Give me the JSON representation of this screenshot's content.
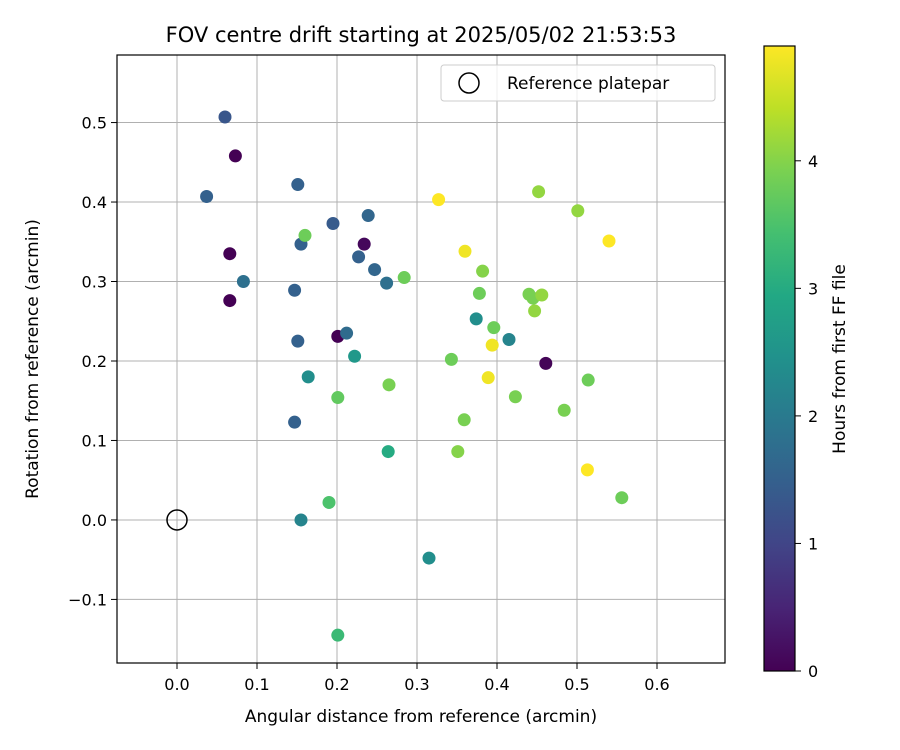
{
  "chart_data": {
    "type": "scatter",
    "title": "FOV centre drift starting at 2025/05/02 21:53:53",
    "xlabel": "Angular distance from reference (arcmin)",
    "ylabel": "Rotation from reference (arcmin)",
    "xlim": [
      -0.075,
      0.685
    ],
    "ylim": [
      -0.18,
      0.585
    ],
    "xticks": [
      0.0,
      0.1,
      0.2,
      0.3,
      0.4,
      0.5,
      0.6
    ],
    "xtick_labels": [
      "0.0",
      "0.1",
      "0.2",
      "0.3",
      "0.4",
      "0.5",
      "0.6"
    ],
    "yticks": [
      -0.1,
      0.0,
      0.1,
      0.2,
      0.3,
      0.4,
      0.5
    ],
    "ytick_labels": [
      "−0.1",
      "0.0",
      "0.1",
      "0.2",
      "0.3",
      "0.4",
      "0.5"
    ],
    "grid": true,
    "legend": {
      "position": "top-right",
      "entries": [
        {
          "label": "Reference platepar",
          "marker": "open-circle"
        }
      ]
    },
    "reference_point": {
      "x": 0.0,
      "y": 0.0
    },
    "colorbar": {
      "label": "Hours from first FF file",
      "colormap": "viridis",
      "range": [
        0,
        4.9
      ],
      "ticks": [
        0,
        1,
        2,
        3,
        4
      ],
      "tick_labels": [
        "0",
        "1",
        "2",
        "3",
        "4"
      ]
    },
    "points": [
      {
        "x": 0.073,
        "y": 0.458,
        "hours": 0.0
      },
      {
        "x": 0.066,
        "y": 0.335,
        "hours": 0.0
      },
      {
        "x": 0.066,
        "y": 0.276,
        "hours": 0.0
      },
      {
        "x": 0.201,
        "y": 0.231,
        "hours": 0.0
      },
      {
        "x": 0.234,
        "y": 0.347,
        "hours": 0.1
      },
      {
        "x": 0.461,
        "y": 0.197,
        "hours": 0.05
      },
      {
        "x": 0.06,
        "y": 0.507,
        "hours": 1.3
      },
      {
        "x": 0.037,
        "y": 0.407,
        "hours": 1.5
      },
      {
        "x": 0.151,
        "y": 0.422,
        "hours": 1.5
      },
      {
        "x": 0.195,
        "y": 0.373,
        "hours": 1.4
      },
      {
        "x": 0.155,
        "y": 0.347,
        "hours": 1.5
      },
      {
        "x": 0.239,
        "y": 0.383,
        "hours": 1.6
      },
      {
        "x": 0.227,
        "y": 0.331,
        "hours": 1.5
      },
      {
        "x": 0.247,
        "y": 0.315,
        "hours": 1.6
      },
      {
        "x": 0.147,
        "y": 0.289,
        "hours": 1.5
      },
      {
        "x": 0.083,
        "y": 0.3,
        "hours": 1.8
      },
      {
        "x": 0.262,
        "y": 0.298,
        "hours": 1.8
      },
      {
        "x": 0.151,
        "y": 0.225,
        "hours": 1.5
      },
      {
        "x": 0.212,
        "y": 0.235,
        "hours": 1.7
      },
      {
        "x": 0.147,
        "y": 0.123,
        "hours": 1.5
      },
      {
        "x": 0.155,
        "y": 0.0,
        "hours": 2.2
      },
      {
        "x": 0.164,
        "y": 0.18,
        "hours": 2.4
      },
      {
        "x": 0.222,
        "y": 0.206,
        "hours": 2.6
      },
      {
        "x": 0.315,
        "y": -0.048,
        "hours": 2.4
      },
      {
        "x": 0.374,
        "y": 0.253,
        "hours": 2.4
      },
      {
        "x": 0.415,
        "y": 0.227,
        "hours": 2.2
      },
      {
        "x": 0.264,
        "y": 0.086,
        "hours": 3.0
      },
      {
        "x": 0.19,
        "y": 0.022,
        "hours": 3.5
      },
      {
        "x": 0.201,
        "y": -0.145,
        "hours": 3.3
      },
      {
        "x": 0.201,
        "y": 0.154,
        "hours": 3.7
      },
      {
        "x": 0.16,
        "y": 0.358,
        "hours": 3.8
      },
      {
        "x": 0.284,
        "y": 0.305,
        "hours": 3.8
      },
      {
        "x": 0.265,
        "y": 0.17,
        "hours": 3.9
      },
      {
        "x": 0.343,
        "y": 0.202,
        "hours": 3.8
      },
      {
        "x": 0.359,
        "y": 0.126,
        "hours": 3.9
      },
      {
        "x": 0.351,
        "y": 0.086,
        "hours": 4.0
      },
      {
        "x": 0.378,
        "y": 0.285,
        "hours": 3.8
      },
      {
        "x": 0.382,
        "y": 0.313,
        "hours": 4.0
      },
      {
        "x": 0.396,
        "y": 0.242,
        "hours": 3.8
      },
      {
        "x": 0.423,
        "y": 0.155,
        "hours": 3.9
      },
      {
        "x": 0.44,
        "y": 0.284,
        "hours": 3.9
      },
      {
        "x": 0.445,
        "y": 0.279,
        "hours": 3.9
      },
      {
        "x": 0.447,
        "y": 0.263,
        "hours": 4.1
      },
      {
        "x": 0.456,
        "y": 0.283,
        "hours": 4.1
      },
      {
        "x": 0.452,
        "y": 0.413,
        "hours": 4.1
      },
      {
        "x": 0.501,
        "y": 0.389,
        "hours": 4.1
      },
      {
        "x": 0.484,
        "y": 0.138,
        "hours": 3.9
      },
      {
        "x": 0.514,
        "y": 0.176,
        "hours": 3.8
      },
      {
        "x": 0.556,
        "y": 0.028,
        "hours": 3.8
      },
      {
        "x": 0.327,
        "y": 0.403,
        "hours": 4.9
      },
      {
        "x": 0.36,
        "y": 0.338,
        "hours": 4.8
      },
      {
        "x": 0.394,
        "y": 0.22,
        "hours": 4.8
      },
      {
        "x": 0.389,
        "y": 0.179,
        "hours": 4.8
      },
      {
        "x": 0.54,
        "y": 0.351,
        "hours": 4.9
      },
      {
        "x": 0.513,
        "y": 0.063,
        "hours": 4.9
      }
    ]
  }
}
